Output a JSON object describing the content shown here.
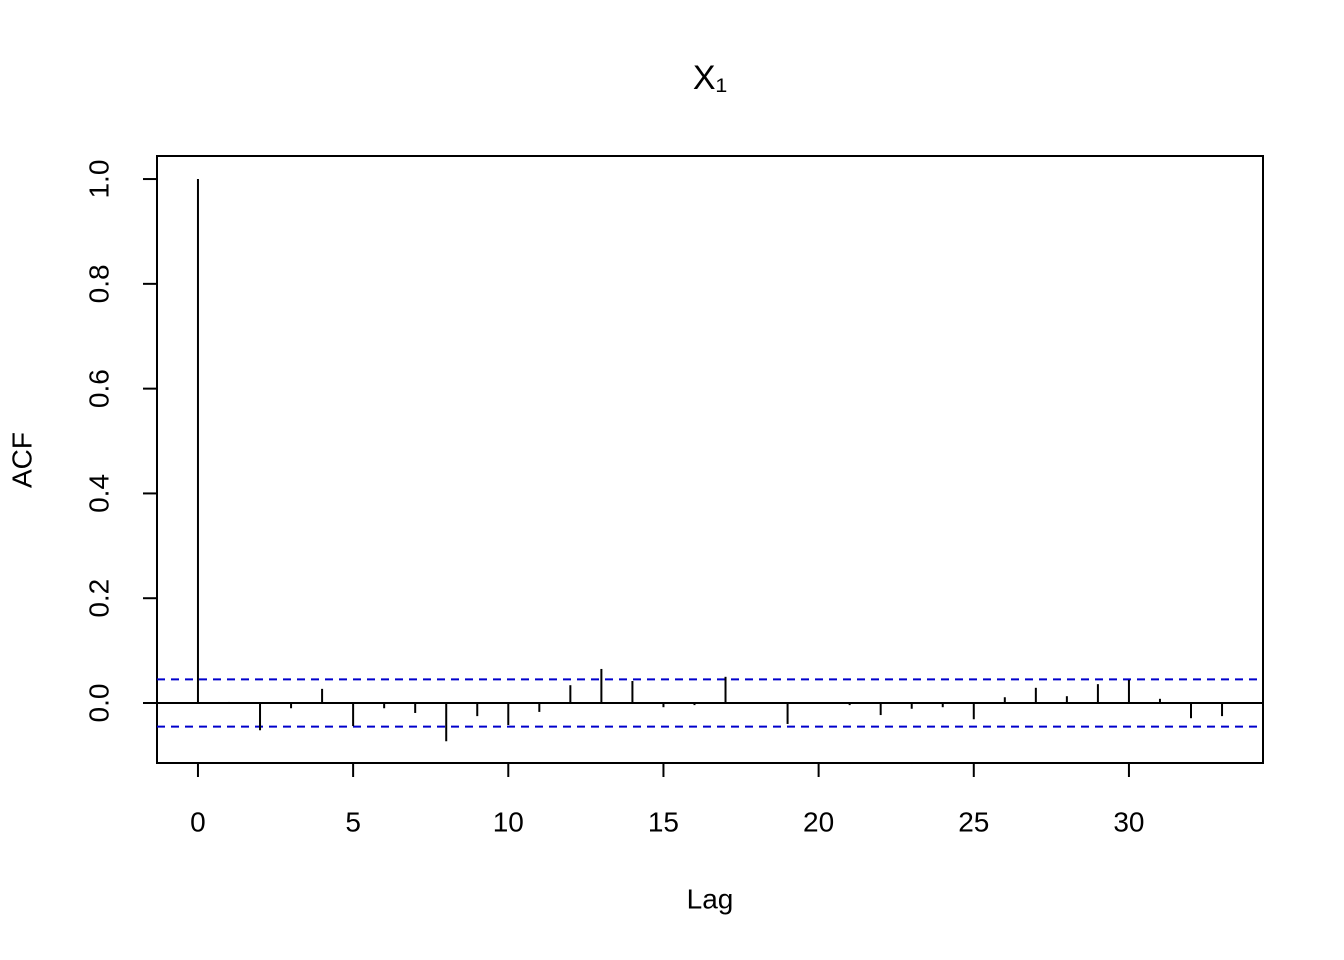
{
  "chart_data": {
    "type": "acf",
    "title": "X₁",
    "x_label": "Lag",
    "y_label": "ACF",
    "x": [
      0,
      1,
      2,
      3,
      4,
      5,
      6,
      7,
      8,
      9,
      10,
      11,
      12,
      13,
      14,
      15,
      16,
      17,
      18,
      19,
      20,
      21,
      22,
      23,
      24,
      25,
      26,
      27,
      28,
      29,
      30,
      31,
      32,
      33
    ],
    "values": [
      1.0,
      0.002,
      -0.052,
      -0.01,
      0.027,
      -0.044,
      -0.01,
      -0.019,
      -0.073,
      -0.025,
      -0.042,
      -0.017,
      0.034,
      0.065,
      0.042,
      -0.008,
      -0.004,
      0.05,
      0.001,
      -0.04,
      -0.001,
      -0.004,
      -0.023,
      -0.011,
      -0.008,
      -0.031,
      0.011,
      0.029,
      0.013,
      0.036,
      0.044,
      0.008,
      -0.029,
      -0.025
    ],
    "color": "#000000",
    "conf_limits": [
      0.045,
      -0.045
    ],
    "conf_color": "#0000cc",
    "xlim": [
      -1.32,
      34.32
    ],
    "ylim": [
      -0.1145,
      1.044
    ],
    "xticks": [
      0,
      5,
      10,
      15,
      20,
      25,
      30
    ],
    "yticks": [
      {
        "value": 0,
        "label": "0.0"
      },
      0.2,
      0.4,
      0.6,
      0.8,
      {
        "value": 1,
        "label": "1.0"
      }
    ]
  }
}
